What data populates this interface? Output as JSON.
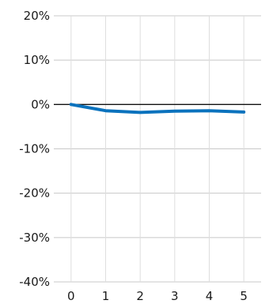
{
  "chart_data": {
    "type": "line",
    "title": "",
    "xlabel": "",
    "ylabel": "",
    "x": [
      0,
      1,
      2,
      3,
      4,
      5
    ],
    "xticks": [
      "0",
      "1",
      "2",
      "3",
      "4",
      "5"
    ],
    "yticks": [
      20,
      10,
      0,
      -10,
      -20,
      -30,
      -40
    ],
    "ytick_labels": [
      "20%",
      "10%",
      "0%",
      "-10%",
      "-20%",
      "-30%",
      "-40%"
    ],
    "ylim": [
      -40,
      20
    ],
    "xlim": [
      -0.5,
      5.5
    ],
    "grid": true,
    "zero_line": true,
    "series": [
      {
        "values": [
          0,
          -1.4,
          -1.8,
          -1.5,
          -1.4,
          -1.7
        ],
        "color": "#0a72bd"
      }
    ]
  }
}
